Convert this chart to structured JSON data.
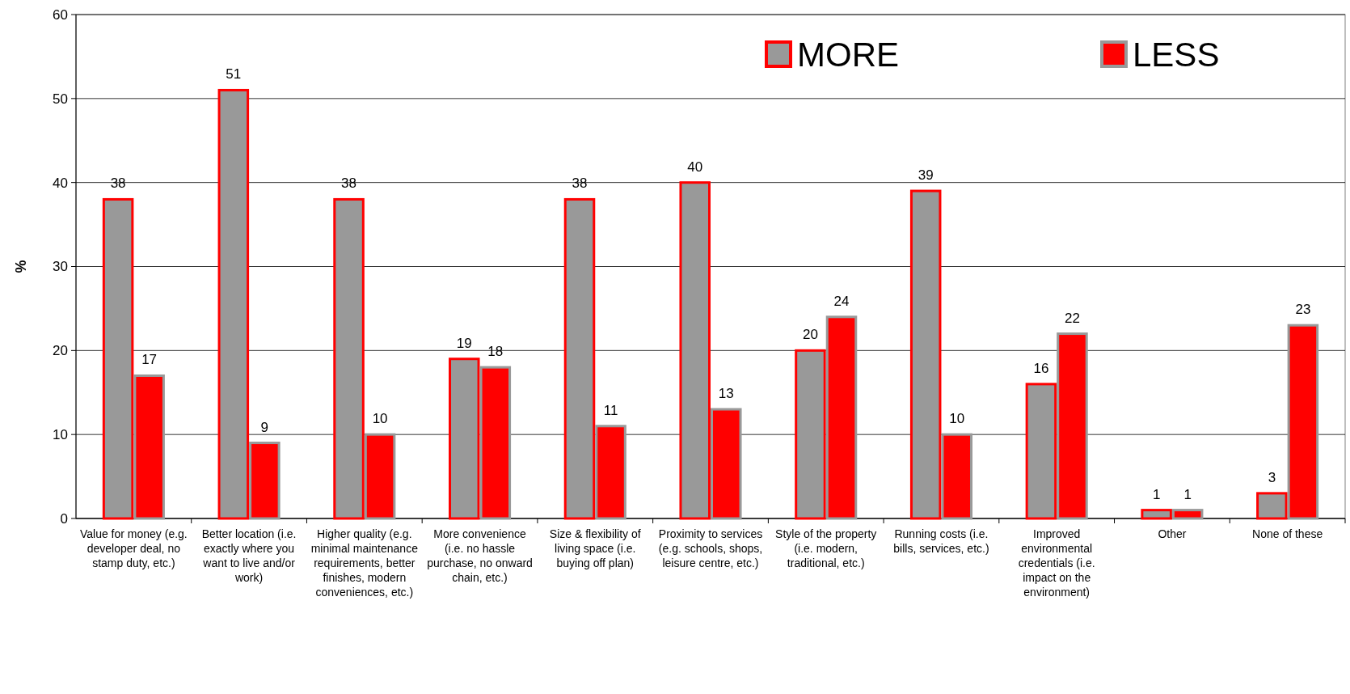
{
  "chart_data": {
    "type": "bar",
    "ylabel": "%",
    "categories": [
      "Value for money (e.g. developer deal, no stamp duty, etc.)",
      "Better location (i.e. exactly where you want to live and/or work)",
      "Higher quality (e.g. minimal maintenance requirements, better finishes, modern conveniences, etc.)",
      "More convenience (i.e. no hassle purchase, no onward chain, etc.)",
      "Size & flexibility of living space (i.e. buying off plan)",
      "Proximity to services (e.g. schools, shops, leisure centre, etc.)",
      "Style of the property (i.e. modern, traditional, etc.)",
      "Running costs (i.e. bills, services, etc.)",
      "Improved environmental credentials (i.e. impact on the environment)",
      "Other",
      "None of these"
    ],
    "series": [
      {
        "name": "MORE",
        "color": "#999999",
        "values": [
          38,
          51,
          38,
          19,
          38,
          40,
          20,
          39,
          16,
          1,
          3
        ]
      },
      {
        "name": "LESS",
        "color": "#ff0000",
        "values": [
          17,
          9,
          10,
          18,
          11,
          13,
          24,
          10,
          22,
          1,
          23
        ]
      }
    ],
    "ylim": [
      0,
      60
    ],
    "yticks": [
      0,
      10,
      20,
      30,
      40,
      50,
      60
    ],
    "grid": "y",
    "legend": "top right",
    "data_labels": true
  }
}
